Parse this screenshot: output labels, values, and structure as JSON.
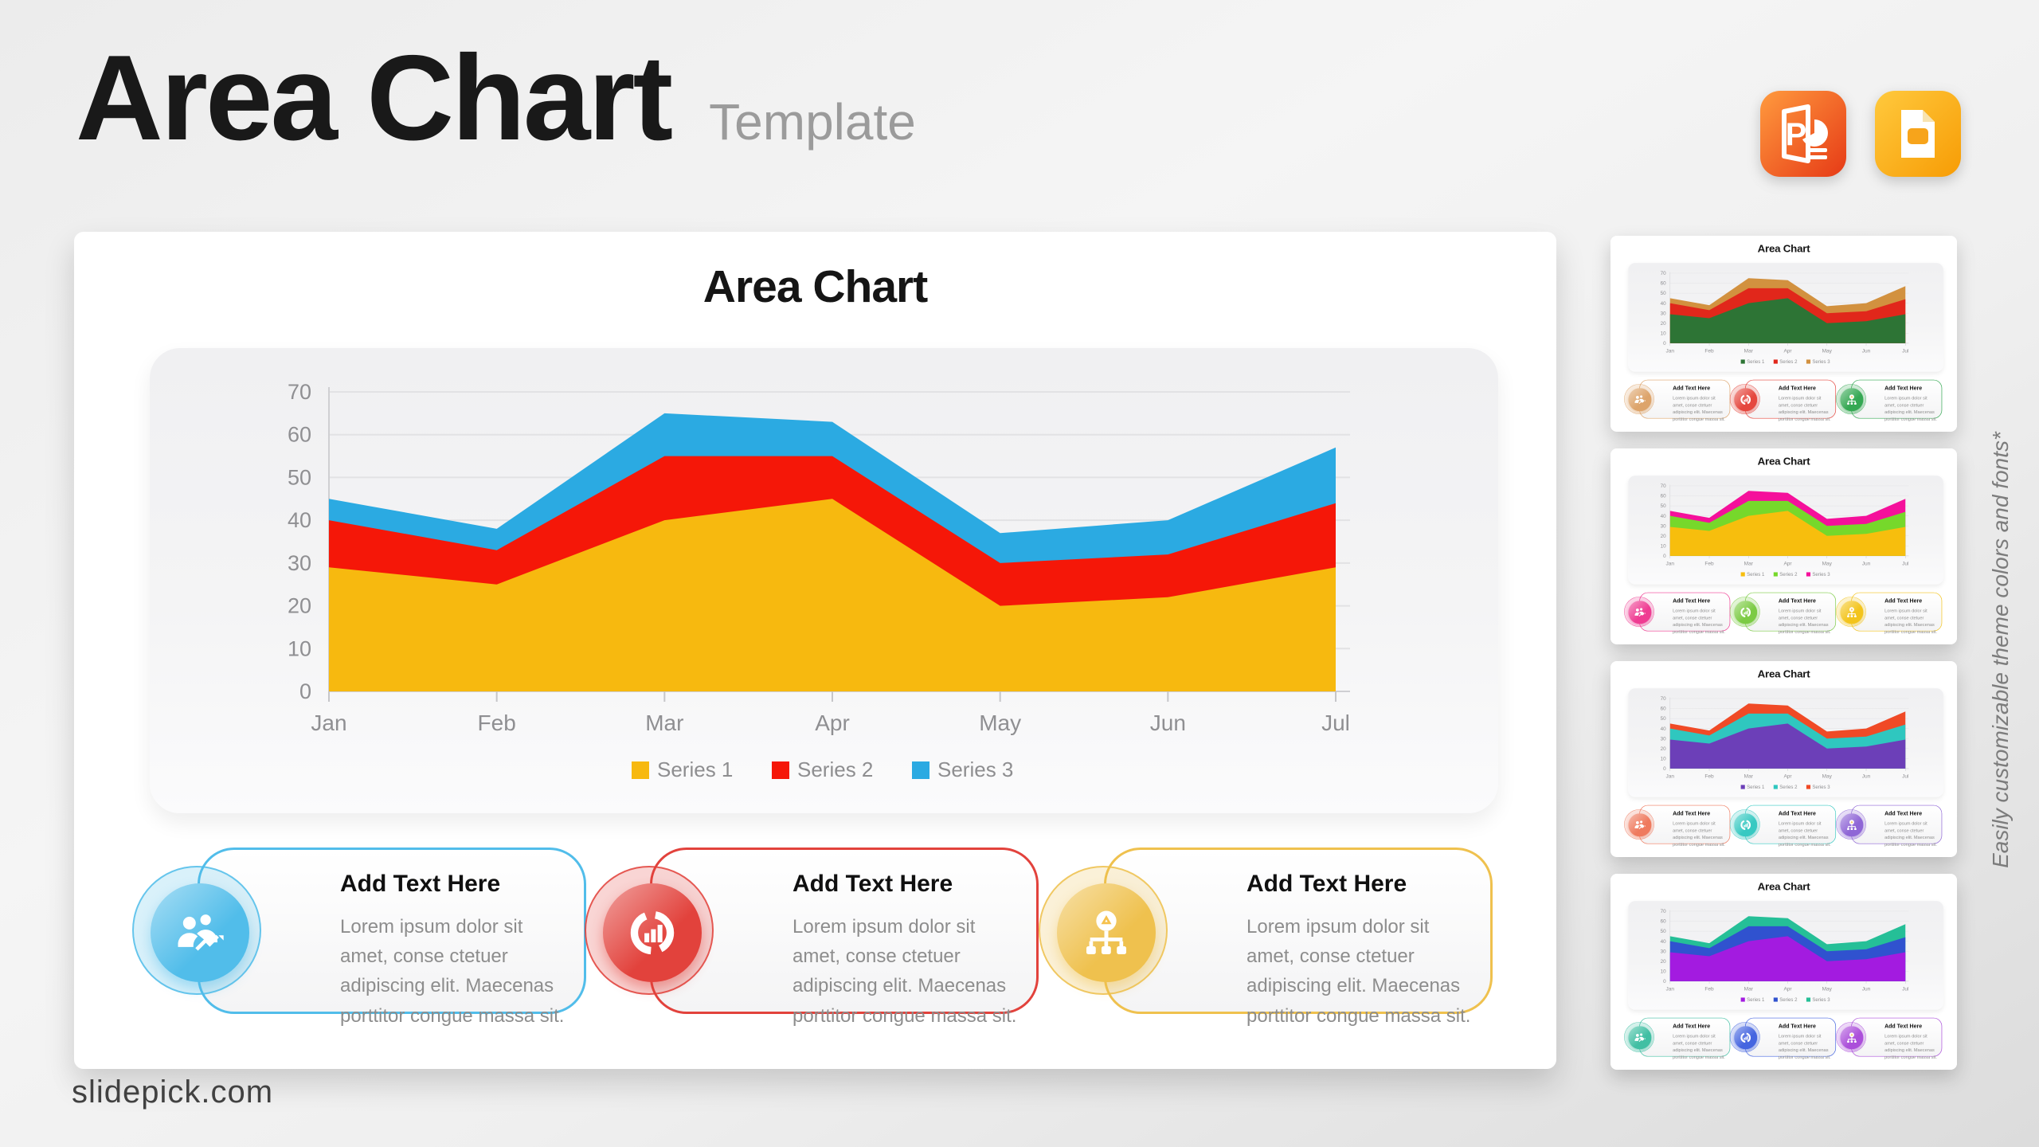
{
  "page": {
    "title": "Area Chart",
    "subtitle": "Template",
    "footer": "slidepick.com",
    "vertical_note": "Easily customizable theme colors and fonts*",
    "export_icons": [
      {
        "name": "powerpoint-icon",
        "colors": [
          "#FF9A3E",
          "#E63A16"
        ]
      },
      {
        "name": "google-slides-icon",
        "colors": [
          "#FFC93D",
          "#F79C05"
        ]
      }
    ]
  },
  "chart_data": {
    "type": "area",
    "title": "Area Chart",
    "categories": [
      "Jan",
      "Feb",
      "Mar",
      "Apr",
      "May",
      "Jun",
      "Jul"
    ],
    "series": [
      {
        "name": "Series 1",
        "values": [
          29,
          25,
          40,
          45,
          20,
          22,
          29
        ]
      },
      {
        "name": "Series 2",
        "values": [
          40,
          33,
          55,
          55,
          30,
          32,
          44
        ]
      },
      {
        "name": "Series 3",
        "values": [
          45,
          38,
          65,
          63,
          37,
          40,
          57
        ]
      }
    ],
    "ylim": [
      0,
      70
    ],
    "yticks": [
      0,
      10,
      20,
      30,
      40,
      50,
      60,
      70
    ],
    "grid": true,
    "legend_position": "bottom",
    "colors": [
      "#F7B90F",
      "#F51708",
      "#2BAAE2"
    ]
  },
  "slide": {
    "title": "Area Chart",
    "boxes": [
      {
        "title": "Add Text Here",
        "body": "Lorem ipsum dolor sit amet, conse ctetuer adipiscing elit. Maecenas porttitor congue massa sit.",
        "icon": "people-growth-icon"
      },
      {
        "title": "Add Text Here",
        "body": "Lorem ipsum dolor sit amet, conse ctetuer adipiscing elit. Maecenas porttitor congue massa sit.",
        "icon": "donut-chart-icon"
      },
      {
        "title": "Add Text Here",
        "body": "Lorem ipsum dolor sit amet, conse ctetuer adipiscing elit. Maecenas porttitor congue massa sit.",
        "icon": "idea-tree-icon"
      }
    ],
    "box_accents": [
      "#51BDEA",
      "#E2423C",
      "#EFC14E"
    ]
  },
  "sidebar": {
    "thumbnails": [
      {
        "title": "Area Chart",
        "chart_colors": [
          "#2D7435",
          "#E1271B",
          "#D2913F"
        ],
        "box_accents": [
          "#DDA46B",
          "#E5473E",
          "#35A853"
        ]
      },
      {
        "title": "Area Chart",
        "chart_colors": [
          "#F7BE0D",
          "#76D82B",
          "#F5109B"
        ],
        "box_accents": [
          "#EF3C92",
          "#7CCB44",
          "#F3C41C"
        ]
      },
      {
        "title": "Area Chart",
        "chart_colors": [
          "#6C3FB8",
          "#2FC7BF",
          "#F04A26"
        ],
        "box_accents": [
          "#EF7A5E",
          "#38C9C2",
          "#8F66D6"
        ]
      },
      {
        "title": "Area Chart",
        "chart_colors": [
          "#A31BE0",
          "#3052CF",
          "#25BF97"
        ],
        "box_accents": [
          "#41BFA3",
          "#4565E0",
          "#AB4FDA"
        ]
      }
    ]
  }
}
